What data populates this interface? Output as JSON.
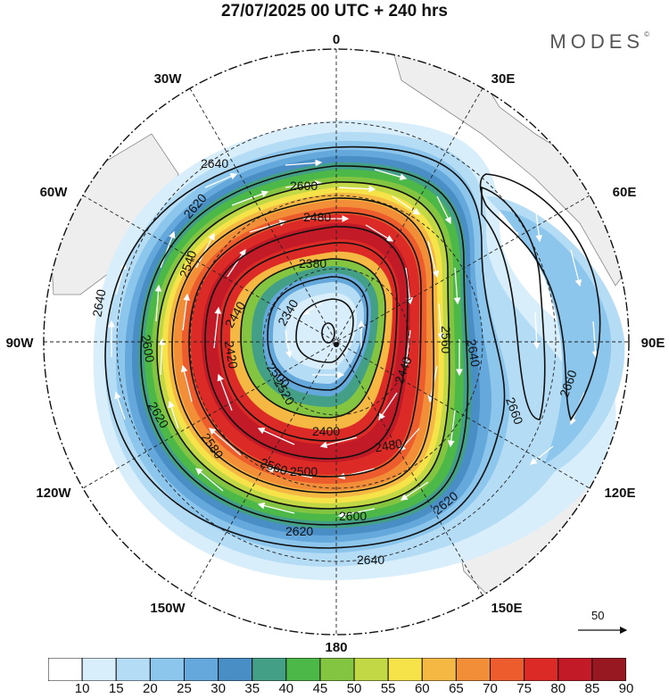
{
  "title": "27/07/2025  00 UTC  + 240 hrs",
  "brand": "MODES",
  "brand_mark": "©",
  "longitude_labels": {
    "n0": "0",
    "n30e": "30E",
    "n60e": "60E",
    "n90e": "90E",
    "n120e": "120E",
    "n150e": "150E",
    "n180": "180",
    "n150w": "150W",
    "n120w": "120W",
    "n90w": "90W",
    "n60w": "60W",
    "n30w": "30W"
  },
  "contour_labels": [
    "2640",
    "2620",
    "2600",
    "2580",
    "2560",
    "2540",
    "2520",
    "2500",
    "2480",
    "2460",
    "2440",
    "2420",
    "2400",
    "2380",
    "2360",
    "2340",
    "2660"
  ],
  "reference_vector": {
    "value": "50"
  },
  "colorbar": {
    "ticks": [
      "10",
      "15",
      "20",
      "25",
      "30",
      "35",
      "40",
      "45",
      "50",
      "55",
      "60",
      "65",
      "70",
      "75",
      "80",
      "85",
      "90"
    ],
    "colors": [
      "#ffffff",
      "#d9eefb",
      "#b5dcf5",
      "#8cc6ec",
      "#64a8dc",
      "#4a8ec6",
      "#43a086",
      "#4cb848",
      "#83c440",
      "#c2d844",
      "#f6e34a",
      "#f5b842",
      "#f28d38",
      "#ec5c2c",
      "#dc2a26",
      "#c21a26",
      "#981822"
    ]
  }
}
